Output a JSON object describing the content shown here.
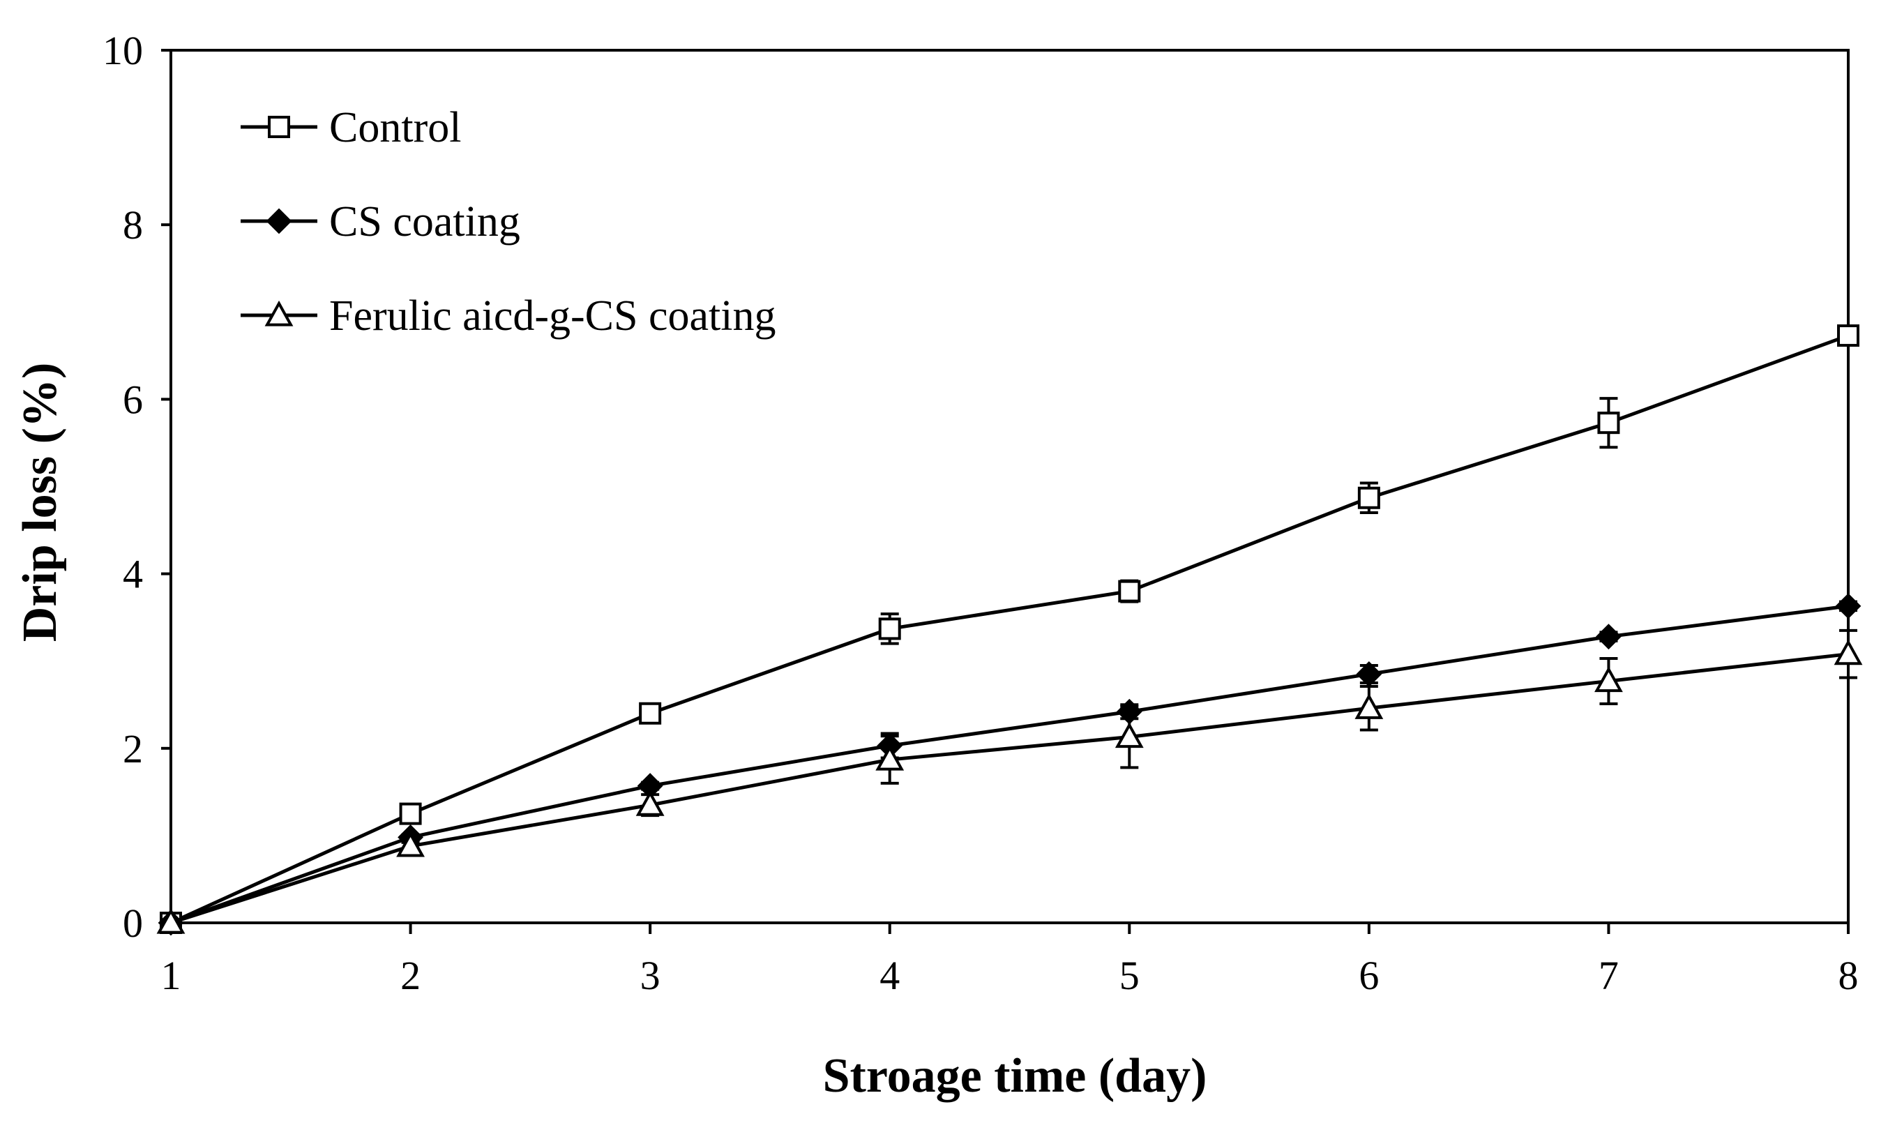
{
  "chart_data": {
    "type": "line",
    "title": "",
    "xlabel": "Stroage time (day)",
    "ylabel": "Drip loss (%)",
    "x": [
      1,
      2,
      3,
      4,
      5,
      6,
      7,
      8
    ],
    "xlim": [
      1,
      8
    ],
    "ylim": [
      0,
      10
    ],
    "yticks": [
      0,
      2,
      4,
      6,
      8,
      10
    ],
    "grid": false,
    "legend_position": "top-left",
    "series": [
      {
        "name": "Control",
        "marker": "open-square",
        "values": [
          0,
          1.25,
          2.4,
          3.37,
          3.8,
          4.87,
          5.73,
          6.73
        ],
        "errors": [
          0,
          0.05,
          0.06,
          0.17,
          0.12,
          0.17,
          0.28,
          0.05
        ]
      },
      {
        "name": "CS coating",
        "marker": "filled-diamond",
        "values": [
          0,
          0.98,
          1.57,
          2.03,
          2.42,
          2.85,
          3.28,
          3.63
        ],
        "errors": [
          0,
          0.03,
          0.04,
          0.14,
          0.08,
          0.1,
          0.05,
          0.05
        ]
      },
      {
        "name": "Ferulic aicd-g-CS coating",
        "marker": "open-triangle",
        "values": [
          0,
          0.88,
          1.35,
          1.87,
          2.13,
          2.46,
          2.77,
          3.08
        ],
        "errors": [
          0,
          0.04,
          0.12,
          0.27,
          0.35,
          0.25,
          0.26,
          0.27
        ]
      }
    ]
  }
}
